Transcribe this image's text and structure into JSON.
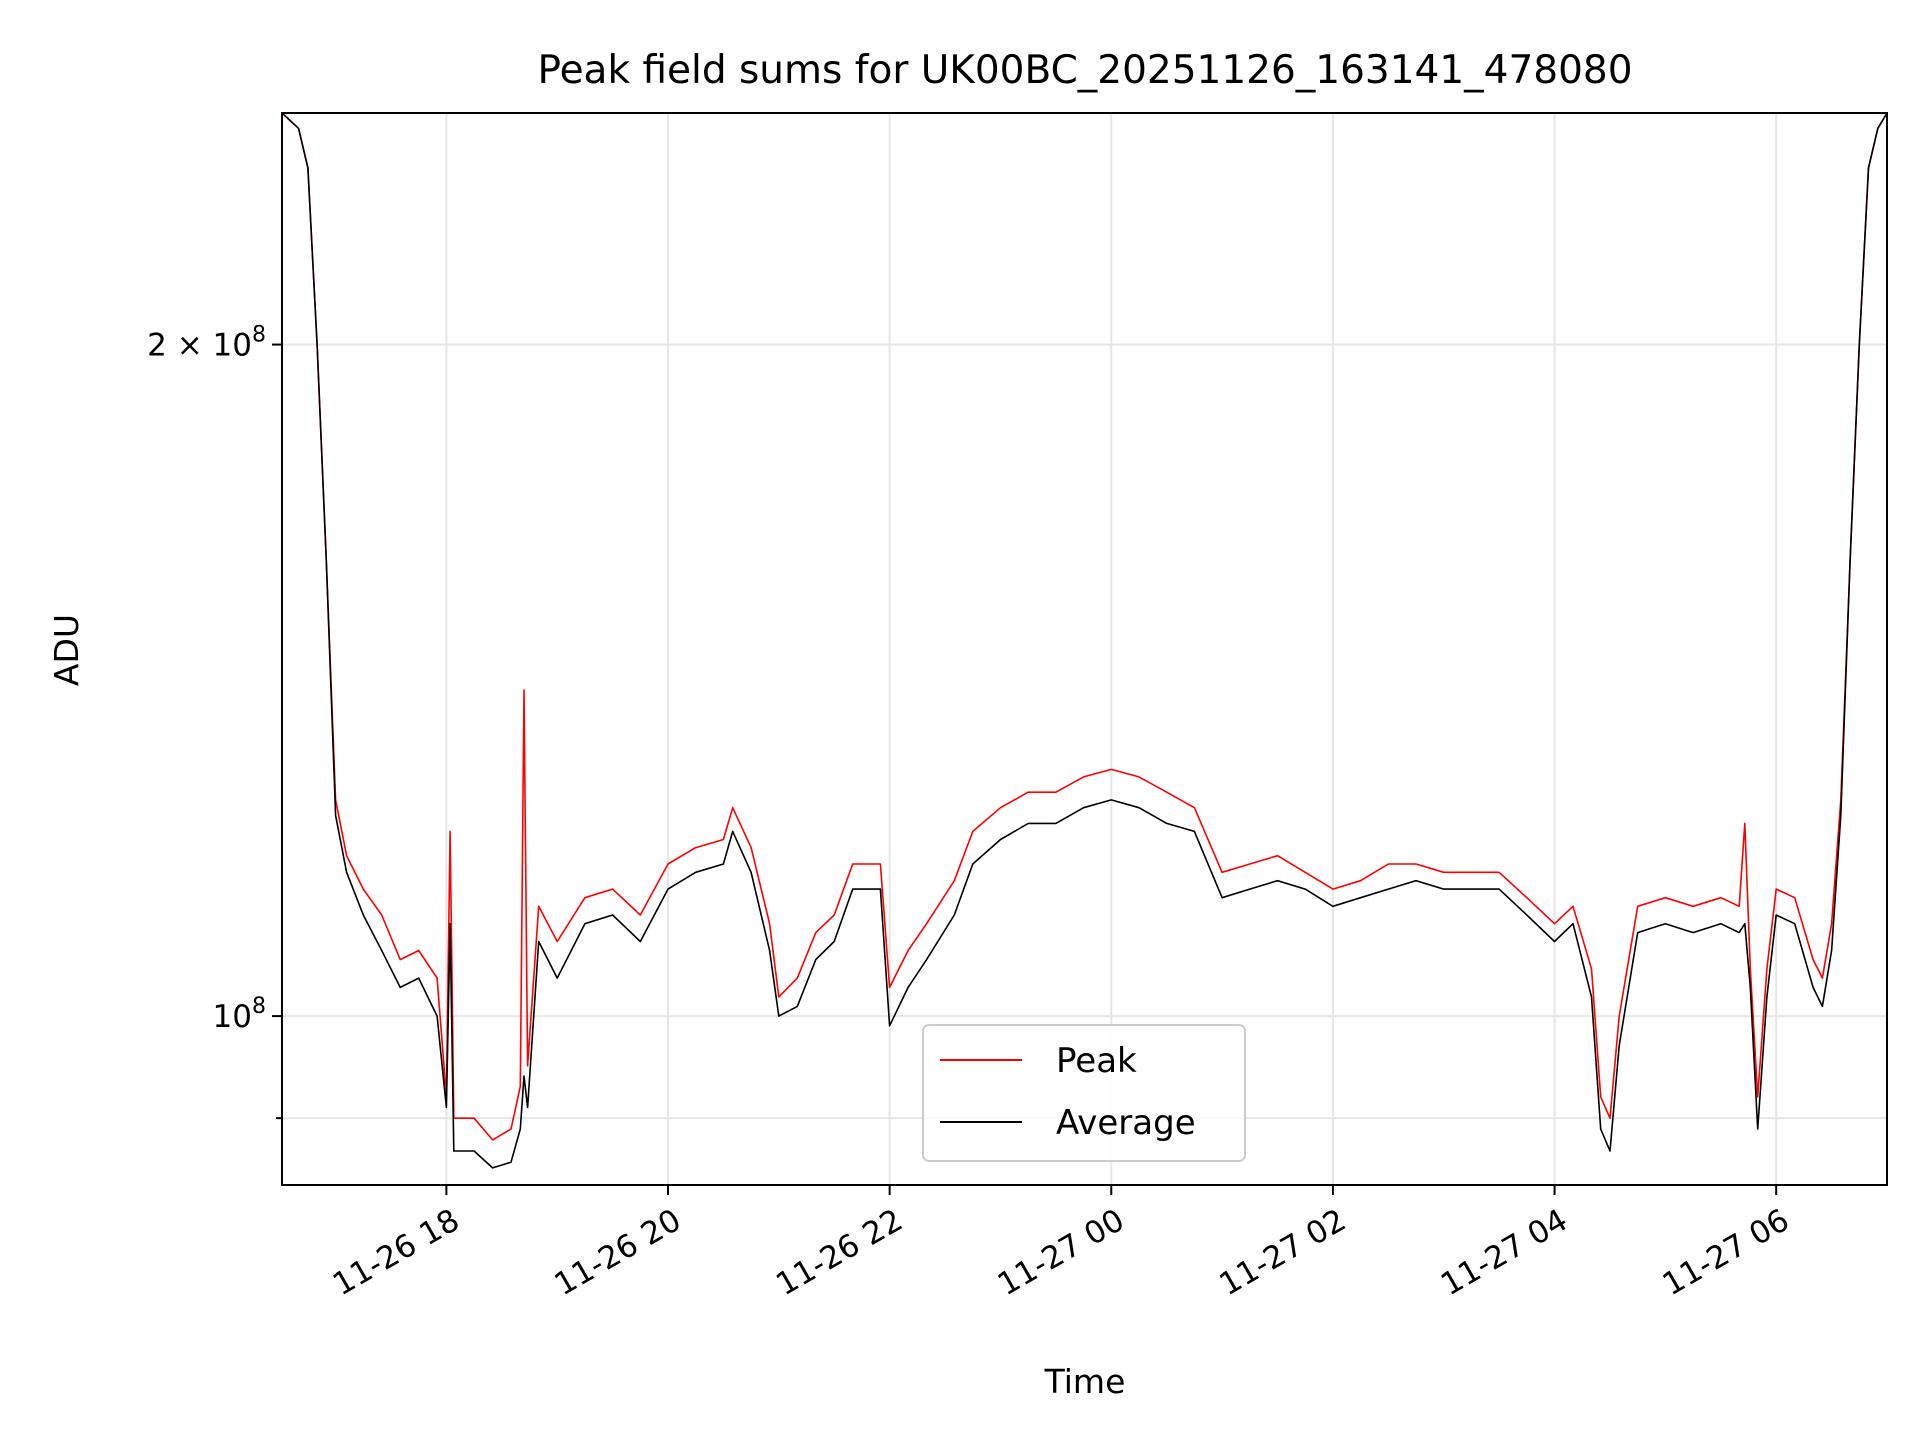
{
  "chart_data": {
    "type": "line",
    "title": "Peak field sums for UK00BC_20251126_163141_478080",
    "xlabel": "Time",
    "ylabel": "ADU",
    "y_scale": "log",
    "grid": true,
    "legend_position": "lower-center",
    "x_tick_labels": [
      "11-26 18",
      "11-26 20",
      "11-26 22",
      "11-27 00",
      "11-27 02",
      "11-27 04",
      "11-27 06"
    ],
    "y_tick_labels": [
      {
        "value": 200000000,
        "base": "2 × 10",
        "exp": "8"
      },
      {
        "value": 100000000,
        "base": "10",
        "exp": "8"
      }
    ],
    "xlim": [
      "2025-11-26 16:31",
      "2025-11-27 07:00"
    ],
    "ylim": [
      84000000,
      254000000
    ],
    "series": [
      {
        "name": "Peak",
        "color": "#ff0000",
        "points": [
          [
            "2025-11-26 16:31",
            254000000
          ],
          [
            "2025-11-26 16:40",
            250000000
          ],
          [
            "2025-11-26 16:45",
            240000000
          ],
          [
            "2025-11-26 16:50",
            200000000
          ],
          [
            "2025-11-26 16:55",
            160000000
          ],
          [
            "2025-11-26 17:00",
            125000000
          ],
          [
            "2025-11-26 17:06",
            118000000
          ],
          [
            "2025-11-26 17:15",
            114000000
          ],
          [
            "2025-11-26 17:25",
            111000000
          ],
          [
            "2025-11-26 17:35",
            106000000
          ],
          [
            "2025-11-26 17:45",
            107000000
          ],
          [
            "2025-11-26 17:55",
            104000000
          ],
          [
            "2025-11-26 18:00",
            92000000
          ],
          [
            "2025-11-26 18:02",
            121000000
          ],
          [
            "2025-11-26 18:04",
            90000000
          ],
          [
            "2025-11-26 18:15",
            90000000
          ],
          [
            "2025-11-26 18:25",
            88000000
          ],
          [
            "2025-11-26 18:35",
            89000000
          ],
          [
            "2025-11-26 18:40",
            93000000
          ],
          [
            "2025-11-26 18:42",
            140000000
          ],
          [
            "2025-11-26 18:44",
            95000000
          ],
          [
            "2025-11-26 18:50",
            112000000
          ],
          [
            "2025-11-26 19:00",
            108000000
          ],
          [
            "2025-11-26 19:15",
            113000000
          ],
          [
            "2025-11-26 19:30",
            114000000
          ],
          [
            "2025-11-26 19:45",
            111000000
          ],
          [
            "2025-11-26 20:00",
            117000000
          ],
          [
            "2025-11-26 20:15",
            119000000
          ],
          [
            "2025-11-26 20:30",
            120000000
          ],
          [
            "2025-11-26 20:35",
            124000000
          ],
          [
            "2025-11-26 20:45",
            119000000
          ],
          [
            "2025-11-26 20:55",
            110000000
          ],
          [
            "2025-11-26 21:00",
            102000000
          ],
          [
            "2025-11-26 21:10",
            104000000
          ],
          [
            "2025-11-26 21:20",
            109000000
          ],
          [
            "2025-11-26 21:30",
            111000000
          ],
          [
            "2025-11-26 21:40",
            117000000
          ],
          [
            "2025-11-26 21:55",
            117000000
          ],
          [
            "2025-11-26 22:00",
            103000000
          ],
          [
            "2025-11-26 22:10",
            107000000
          ],
          [
            "2025-11-26 22:20",
            110000000
          ],
          [
            "2025-11-26 22:35",
            115000000
          ],
          [
            "2025-11-26 22:45",
            121000000
          ],
          [
            "2025-11-26 23:00",
            124000000
          ],
          [
            "2025-11-26 23:15",
            126000000
          ],
          [
            "2025-11-26 23:30",
            126000000
          ],
          [
            "2025-11-26 23:45",
            128000000
          ],
          [
            "2025-11-27 00:00",
            129000000
          ],
          [
            "2025-11-27 00:15",
            128000000
          ],
          [
            "2025-11-27 00:30",
            126000000
          ],
          [
            "2025-11-27 00:45",
            124000000
          ],
          [
            "2025-11-27 01:00",
            116000000
          ],
          [
            "2025-11-27 01:15",
            117000000
          ],
          [
            "2025-11-27 01:30",
            118000000
          ],
          [
            "2025-11-27 01:45",
            116000000
          ],
          [
            "2025-11-27 02:00",
            114000000
          ],
          [
            "2025-11-27 02:15",
            115000000
          ],
          [
            "2025-11-27 02:30",
            117000000
          ],
          [
            "2025-11-27 02:45",
            117000000
          ],
          [
            "2025-11-27 03:00",
            116000000
          ],
          [
            "2025-11-27 03:15",
            116000000
          ],
          [
            "2025-11-27 03:30",
            116000000
          ],
          [
            "2025-11-27 03:45",
            113000000
          ],
          [
            "2025-11-27 04:00",
            110000000
          ],
          [
            "2025-11-27 04:10",
            112000000
          ],
          [
            "2025-11-27 04:20",
            105000000
          ],
          [
            "2025-11-27 04:25",
            92000000
          ],
          [
            "2025-11-27 04:30",
            90000000
          ],
          [
            "2025-11-27 04:35",
            100000000
          ],
          [
            "2025-11-27 04:45",
            112000000
          ],
          [
            "2025-11-27 05:00",
            113000000
          ],
          [
            "2025-11-27 05:15",
            112000000
          ],
          [
            "2025-11-27 05:30",
            113000000
          ],
          [
            "2025-11-27 05:40",
            112000000
          ],
          [
            "2025-11-27 05:43",
            122000000
          ],
          [
            "2025-11-27 05:46",
            105000000
          ],
          [
            "2025-11-27 05:50",
            92000000
          ],
          [
            "2025-11-27 05:55",
            105000000
          ],
          [
            "2025-11-27 06:00",
            114000000
          ],
          [
            "2025-11-27 06:10",
            113000000
          ],
          [
            "2025-11-27 06:20",
            106000000
          ],
          [
            "2025-11-27 06:25",
            104000000
          ],
          [
            "2025-11-27 06:30",
            110000000
          ],
          [
            "2025-11-27 06:35",
            125000000
          ],
          [
            "2025-11-27 06:40",
            160000000
          ],
          [
            "2025-11-27 06:45",
            200000000
          ],
          [
            "2025-11-27 06:50",
            240000000
          ],
          [
            "2025-11-27 06:55",
            250000000
          ],
          [
            "2025-11-27 07:00",
            254000000
          ]
        ]
      },
      {
        "name": "Average",
        "color": "#000000",
        "points": [
          [
            "2025-11-26 16:31",
            254000000
          ],
          [
            "2025-11-26 16:40",
            250000000
          ],
          [
            "2025-11-26 16:45",
            240000000
          ],
          [
            "2025-11-26 16:50",
            200000000
          ],
          [
            "2025-11-26 16:55",
            160000000
          ],
          [
            "2025-11-26 17:00",
            123000000
          ],
          [
            "2025-11-26 17:06",
            116000000
          ],
          [
            "2025-11-26 17:15",
            111000000
          ],
          [
            "2025-11-26 17:25",
            107000000
          ],
          [
            "2025-11-26 17:35",
            103000000
          ],
          [
            "2025-11-26 17:45",
            104000000
          ],
          [
            "2025-11-26 17:55",
            100000000
          ],
          [
            "2025-11-26 18:00",
            91000000
          ],
          [
            "2025-11-26 18:02",
            110000000
          ],
          [
            "2025-11-26 18:04",
            87000000
          ],
          [
            "2025-11-26 18:15",
            87000000
          ],
          [
            "2025-11-26 18:25",
            85500000
          ],
          [
            "2025-11-26 18:35",
            86000000
          ],
          [
            "2025-11-26 18:40",
            89000000
          ],
          [
            "2025-11-26 18:42",
            94000000
          ],
          [
            "2025-11-26 18:44",
            91000000
          ],
          [
            "2025-11-26 18:50",
            108000000
          ],
          [
            "2025-11-26 19:00",
            104000000
          ],
          [
            "2025-11-26 19:15",
            110000000
          ],
          [
            "2025-11-26 19:30",
            111000000
          ],
          [
            "2025-11-26 19:45",
            108000000
          ],
          [
            "2025-11-26 20:00",
            114000000
          ],
          [
            "2025-11-26 20:15",
            116000000
          ],
          [
            "2025-11-26 20:30",
            117000000
          ],
          [
            "2025-11-26 20:35",
            121000000
          ],
          [
            "2025-11-26 20:45",
            116000000
          ],
          [
            "2025-11-26 20:55",
            107000000
          ],
          [
            "2025-11-26 21:00",
            100000000
          ],
          [
            "2025-11-26 21:10",
            101000000
          ],
          [
            "2025-11-26 21:20",
            106000000
          ],
          [
            "2025-11-26 21:30",
            108000000
          ],
          [
            "2025-11-26 21:40",
            114000000
          ],
          [
            "2025-11-26 21:55",
            114000000
          ],
          [
            "2025-11-26 22:00",
            99000000
          ],
          [
            "2025-11-26 22:10",
            103000000
          ],
          [
            "2025-11-26 22:20",
            106000000
          ],
          [
            "2025-11-26 22:35",
            111000000
          ],
          [
            "2025-11-26 22:45",
            117000000
          ],
          [
            "2025-11-26 23:00",
            120000000
          ],
          [
            "2025-11-26 23:15",
            122000000
          ],
          [
            "2025-11-26 23:30",
            122000000
          ],
          [
            "2025-11-26 23:45",
            124000000
          ],
          [
            "2025-11-27 00:00",
            125000000
          ],
          [
            "2025-11-27 00:15",
            124000000
          ],
          [
            "2025-11-27 00:30",
            122000000
          ],
          [
            "2025-11-27 00:45",
            121000000
          ],
          [
            "2025-11-27 01:00",
            113000000
          ],
          [
            "2025-11-27 01:15",
            114000000
          ],
          [
            "2025-11-27 01:30",
            115000000
          ],
          [
            "2025-11-27 01:45",
            114000000
          ],
          [
            "2025-11-27 02:00",
            112000000
          ],
          [
            "2025-11-27 02:15",
            113000000
          ],
          [
            "2025-11-27 02:30",
            114000000
          ],
          [
            "2025-11-27 02:45",
            115000000
          ],
          [
            "2025-11-27 03:00",
            114000000
          ],
          [
            "2025-11-27 03:15",
            114000000
          ],
          [
            "2025-11-27 03:30",
            114000000
          ],
          [
            "2025-11-27 03:45",
            111000000
          ],
          [
            "2025-11-27 04:00",
            108000000
          ],
          [
            "2025-11-27 04:10",
            110000000
          ],
          [
            "2025-11-27 04:20",
            102000000
          ],
          [
            "2025-11-27 04:25",
            89000000
          ],
          [
            "2025-11-27 04:30",
            87000000
          ],
          [
            "2025-11-27 04:35",
            97000000
          ],
          [
            "2025-11-27 04:45",
            109000000
          ],
          [
            "2025-11-27 05:00",
            110000000
          ],
          [
            "2025-11-27 05:15",
            109000000
          ],
          [
            "2025-11-27 05:30",
            110000000
          ],
          [
            "2025-11-27 05:40",
            109000000
          ],
          [
            "2025-11-27 05:43",
            110000000
          ],
          [
            "2025-11-27 05:46",
            103000000
          ],
          [
            "2025-11-27 05:50",
            89000000
          ],
          [
            "2025-11-27 05:55",
            102000000
          ],
          [
            "2025-11-27 06:00",
            111000000
          ],
          [
            "2025-11-27 06:10",
            110000000
          ],
          [
            "2025-11-27 06:20",
            103000000
          ],
          [
            "2025-11-27 06:25",
            101000000
          ],
          [
            "2025-11-27 06:30",
            107000000
          ],
          [
            "2025-11-27 06:35",
            123000000
          ],
          [
            "2025-11-27 06:40",
            160000000
          ],
          [
            "2025-11-27 06:45",
            200000000
          ],
          [
            "2025-11-27 06:50",
            240000000
          ],
          [
            "2025-11-27 06:55",
            250000000
          ],
          [
            "2025-11-27 07:00",
            254000000
          ]
        ]
      }
    ]
  }
}
